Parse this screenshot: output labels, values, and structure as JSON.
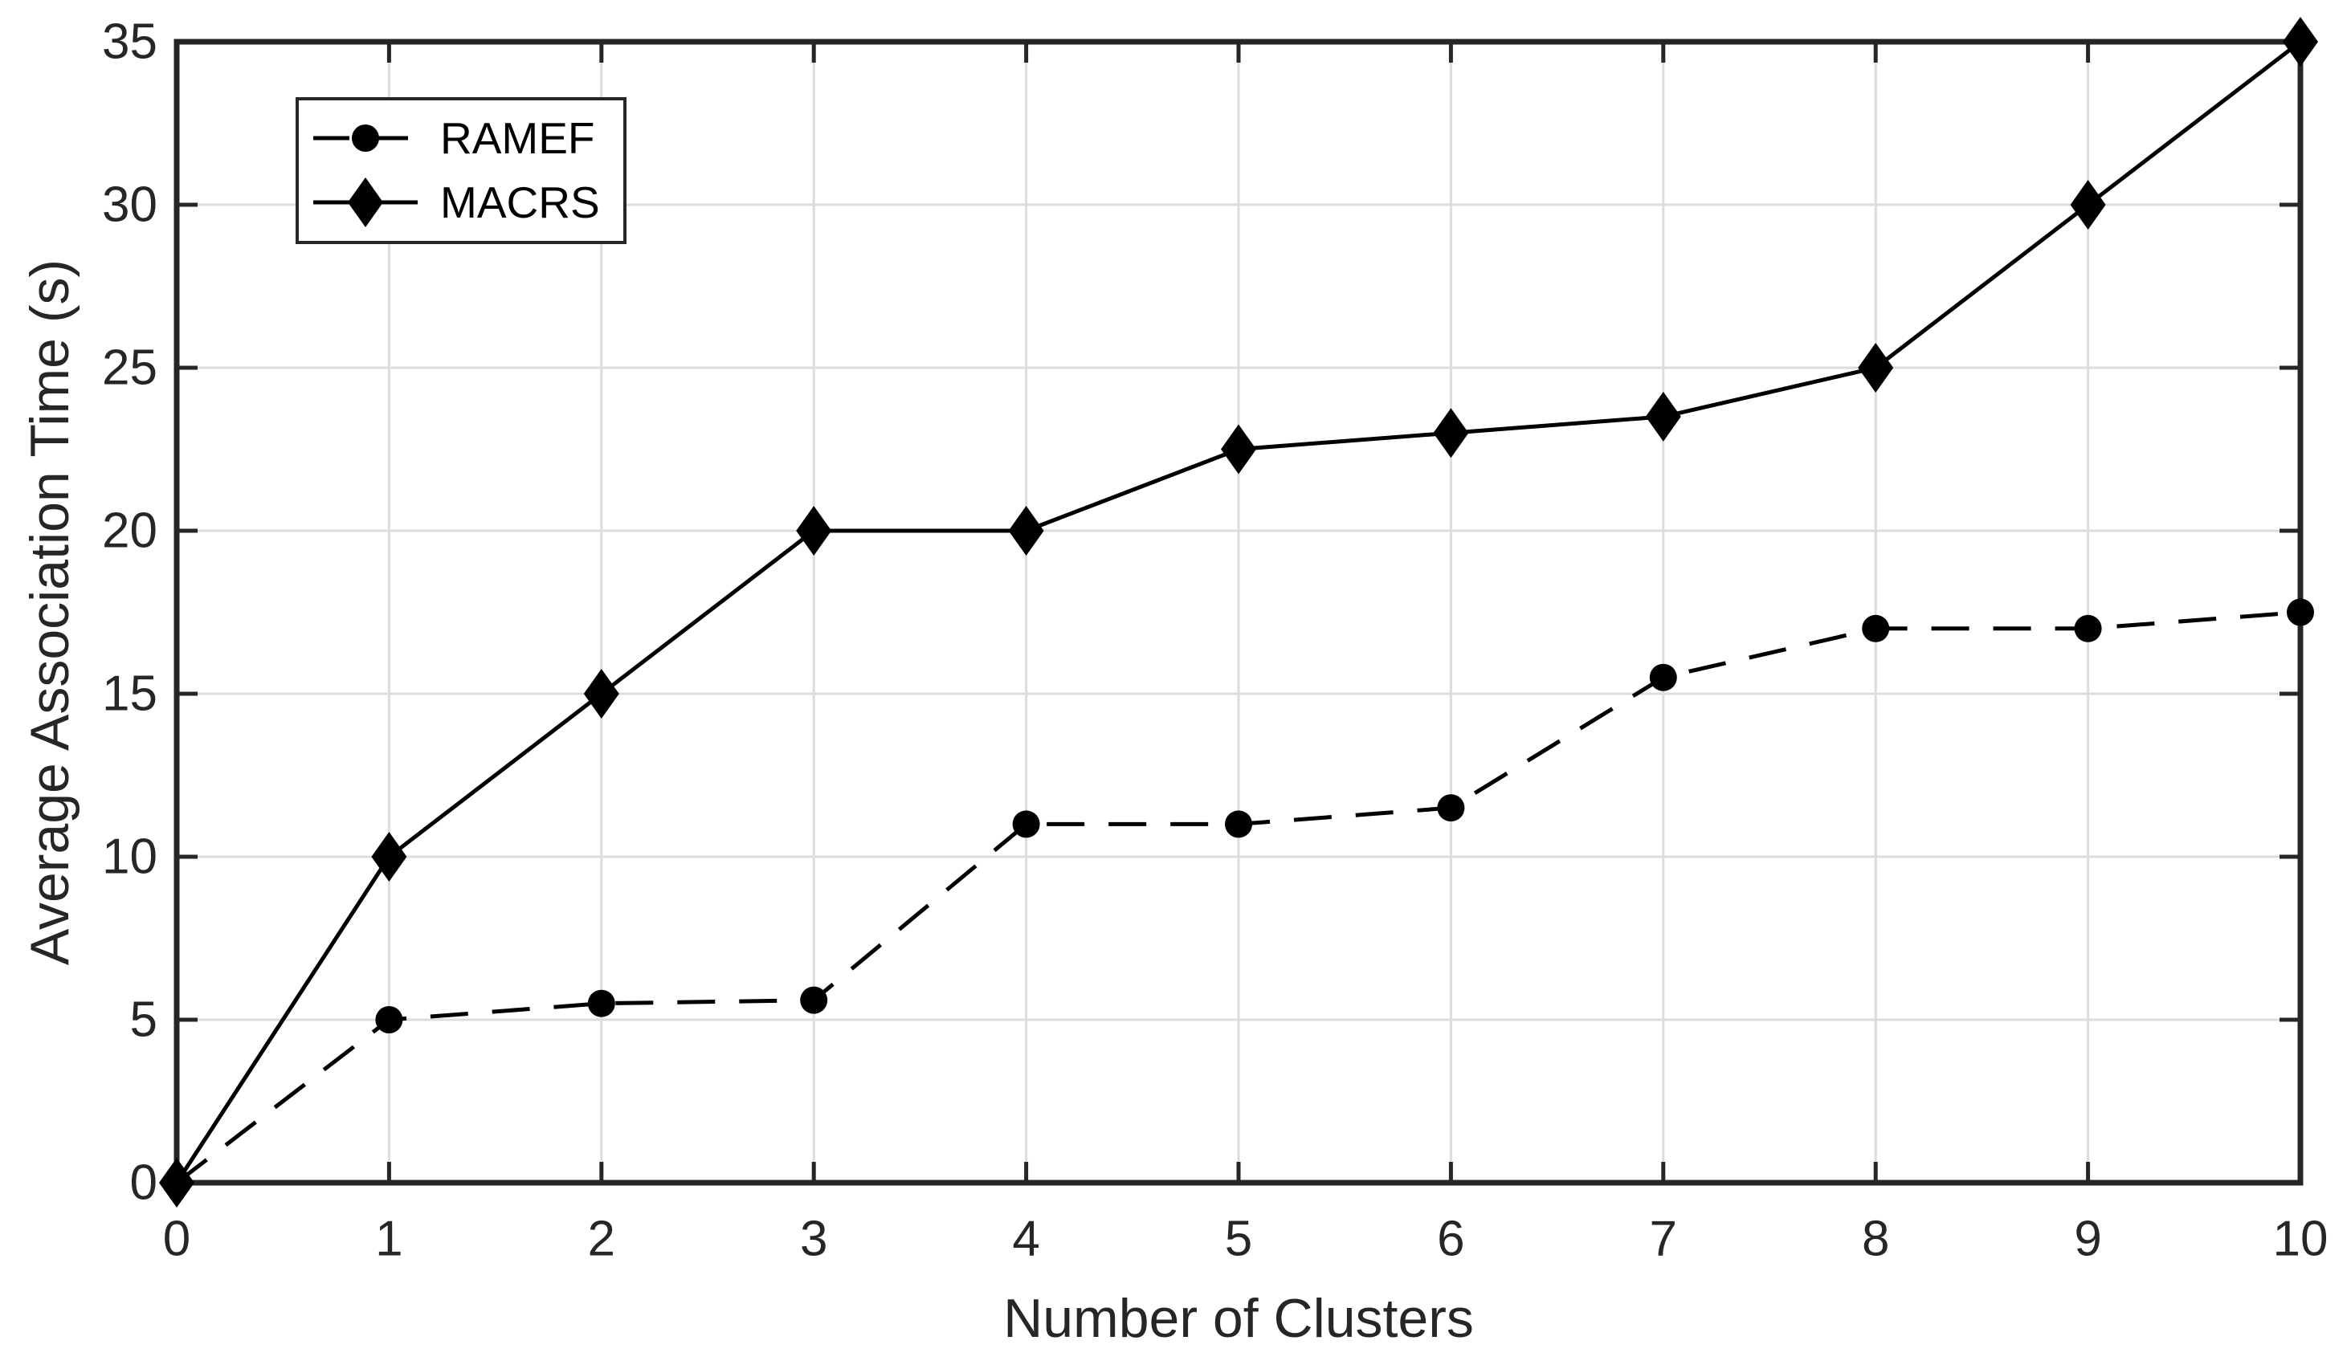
{
  "figure": {
    "background": "#ffffff",
    "axis_color": "#262626",
    "grid_color": "#dcdcdc",
    "text_color": "#262626",
    "series_color": "#000000",
    "legend_border_color": "#262626",
    "legend_background": "#ffffff"
  },
  "chart_data": {
    "type": "line",
    "title": "",
    "xlabel": "Number of Clusters",
    "ylabel": "Average Association Time (s)",
    "xlim": [
      0,
      10
    ],
    "ylim": [
      0,
      35
    ],
    "xticks": [
      0,
      1,
      2,
      3,
      4,
      5,
      6,
      7,
      8,
      9,
      10
    ],
    "yticks": [
      0,
      5,
      10,
      15,
      20,
      25,
      30,
      35
    ],
    "xtick_labels": [
      "0",
      "1",
      "2",
      "3",
      "4",
      "5",
      "6",
      "7",
      "8",
      "9",
      "10"
    ],
    "ytick_labels": [
      "0",
      "5",
      "10",
      "15",
      "20",
      "25",
      "30",
      "35"
    ],
    "grid": true,
    "box": true,
    "legend_position": "upper-left",
    "x": [
      0,
      1,
      2,
      3,
      4,
      5,
      6,
      7,
      8,
      9,
      10
    ],
    "series": [
      {
        "name": "RAMEF",
        "values": [
          0,
          5,
          5.5,
          5.6,
          11,
          11,
          11.5,
          15.5,
          17,
          17,
          17.5
        ],
        "line_style": "dashed",
        "marker": "circle",
        "color": "#000000"
      },
      {
        "name": "MACRS",
        "values": [
          0,
          10,
          15,
          20,
          20,
          22.5,
          23,
          23.5,
          25,
          30,
          35
        ],
        "line_style": "solid",
        "marker": "diamond",
        "color": "#000000"
      }
    ]
  }
}
